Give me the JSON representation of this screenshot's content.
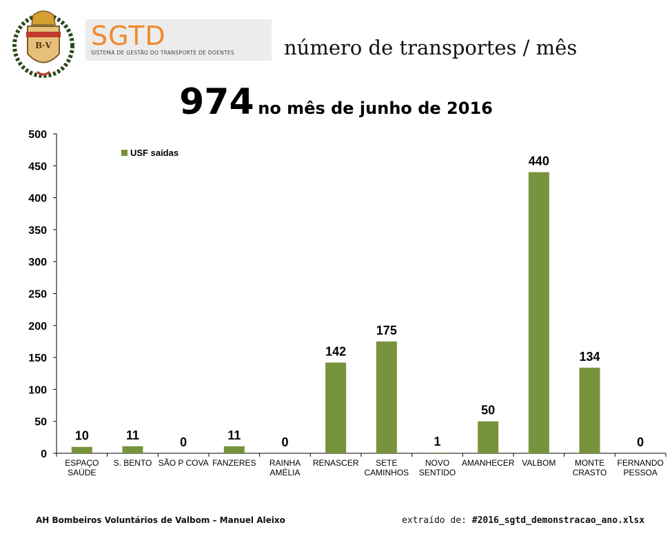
{
  "header": {
    "logo_title": "SGTD",
    "logo_subtitle": "SISTEMA DE GESTÃO DO TRANSPORTE DE DOENTES",
    "crest_initials": "B·V",
    "page_title": "número de transportes / mês"
  },
  "headline": {
    "total": "974",
    "text": "no mês de junho de 2016"
  },
  "footer": {
    "left": "AH Bombeiros Voluntários de Valbom – Manuel Aleixo",
    "right_prefix": "extraído de:",
    "right_file": "#2016_sgtd_demonstracao_ano.xlsx"
  },
  "colors": {
    "bar": "#77933c",
    "axis": "#000000"
  },
  "chart_data": {
    "type": "bar",
    "title": "974 no mês de junho de 2016",
    "legend": "USF saídas",
    "legend_position": "top-left",
    "categories": [
      [
        "ESPAÇO",
        "SAÚDE"
      ],
      [
        "S. BENTO"
      ],
      [
        "SÃO P COVA"
      ],
      [
        "FANZERES"
      ],
      [
        "RAINHA",
        "AMÉLIA"
      ],
      [
        "RENASCER"
      ],
      [
        "SETE",
        "CAMINHOS"
      ],
      [
        "NOVO",
        "SENTIDO"
      ],
      [
        "AMANHECER"
      ],
      [
        "VALBOM"
      ],
      [
        "MONTE",
        "CRASTO"
      ],
      [
        "FERNANDO",
        "PESSOA"
      ]
    ],
    "values": [
      10,
      11,
      0,
      11,
      0,
      142,
      175,
      1,
      50,
      440,
      134,
      0
    ],
    "ylim": [
      0,
      500
    ],
    "yticks": [
      0,
      50,
      100,
      150,
      200,
      250,
      300,
      350,
      400,
      450,
      500
    ],
    "xlabel": "",
    "ylabel": ""
  }
}
